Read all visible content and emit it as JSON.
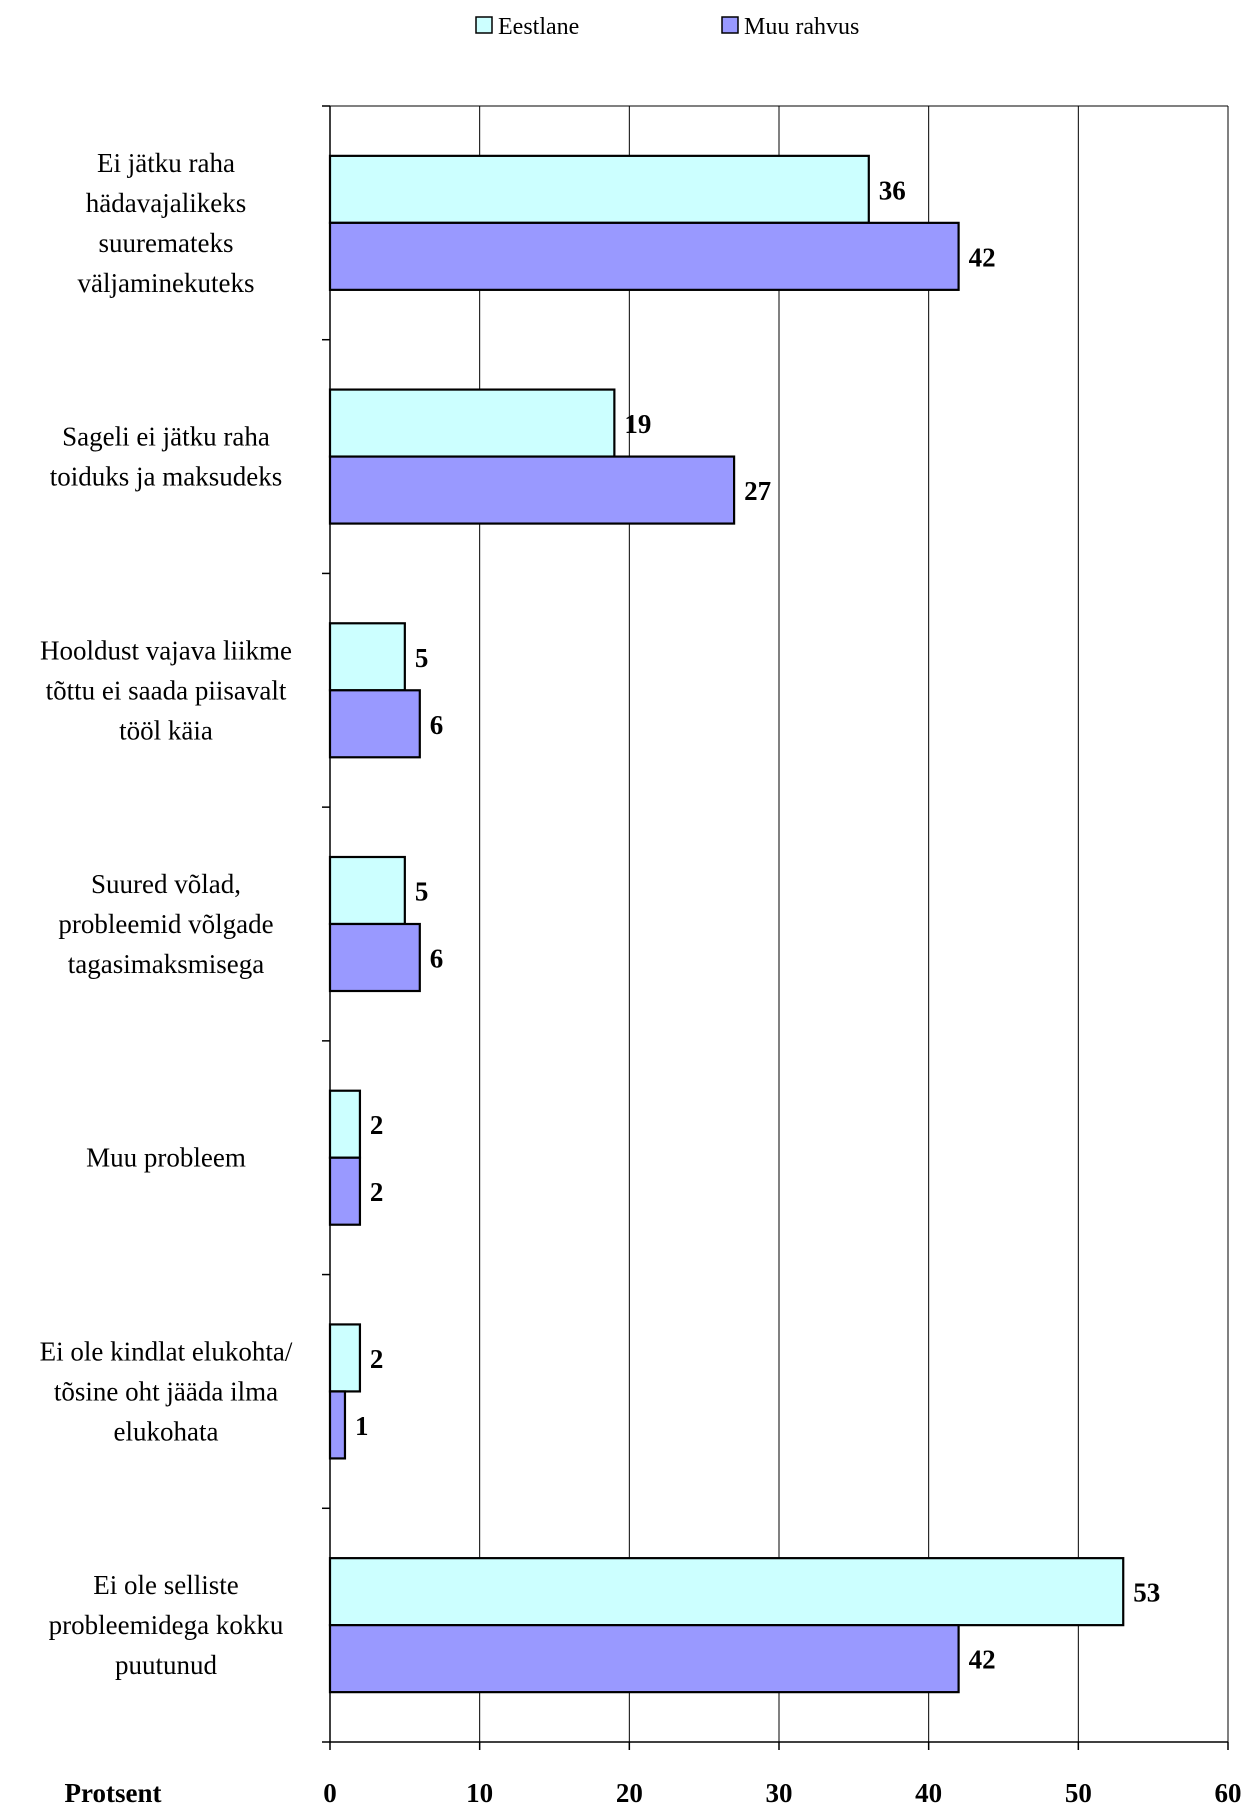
{
  "chart_data": {
    "type": "bar",
    "orientation": "horizontal",
    "categories": [
      [
        "Ei jätku raha",
        "hädavajalikeks",
        "suuremateks",
        "väljaminekuteks"
      ],
      [
        "Sageli ei jätku raha",
        "toiduks ja maksudeks"
      ],
      [
        "Hooldust vajava liikme",
        "tõttu ei saada piisavalt",
        "tööl käia"
      ],
      [
        "Suured võlad,",
        "probleemid võlgade",
        "tagasimaksmisega"
      ],
      [
        "Muu probleem"
      ],
      [
        "Ei ole kindlat elukohta/",
        "tõsine oht jääda ilma",
        "elukohata"
      ],
      [
        "Ei ole selliste",
        "probleemidega kokku",
        "puutunud"
      ]
    ],
    "series": [
      {
        "name": "Eestlane",
        "color": "#ccffff",
        "values": [
          36,
          19,
          5,
          5,
          2,
          2,
          53
        ]
      },
      {
        "name": "Muu rahvus",
        "color": "#9999ff",
        "values": [
          42,
          27,
          6,
          6,
          2,
          1,
          42
        ]
      }
    ],
    "xlabel": "Protsent",
    "xlim": [
      0,
      60
    ],
    "xticks": [
      0,
      10,
      20,
      30,
      40,
      50,
      60
    ],
    "grid": true,
    "legend": "top"
  }
}
